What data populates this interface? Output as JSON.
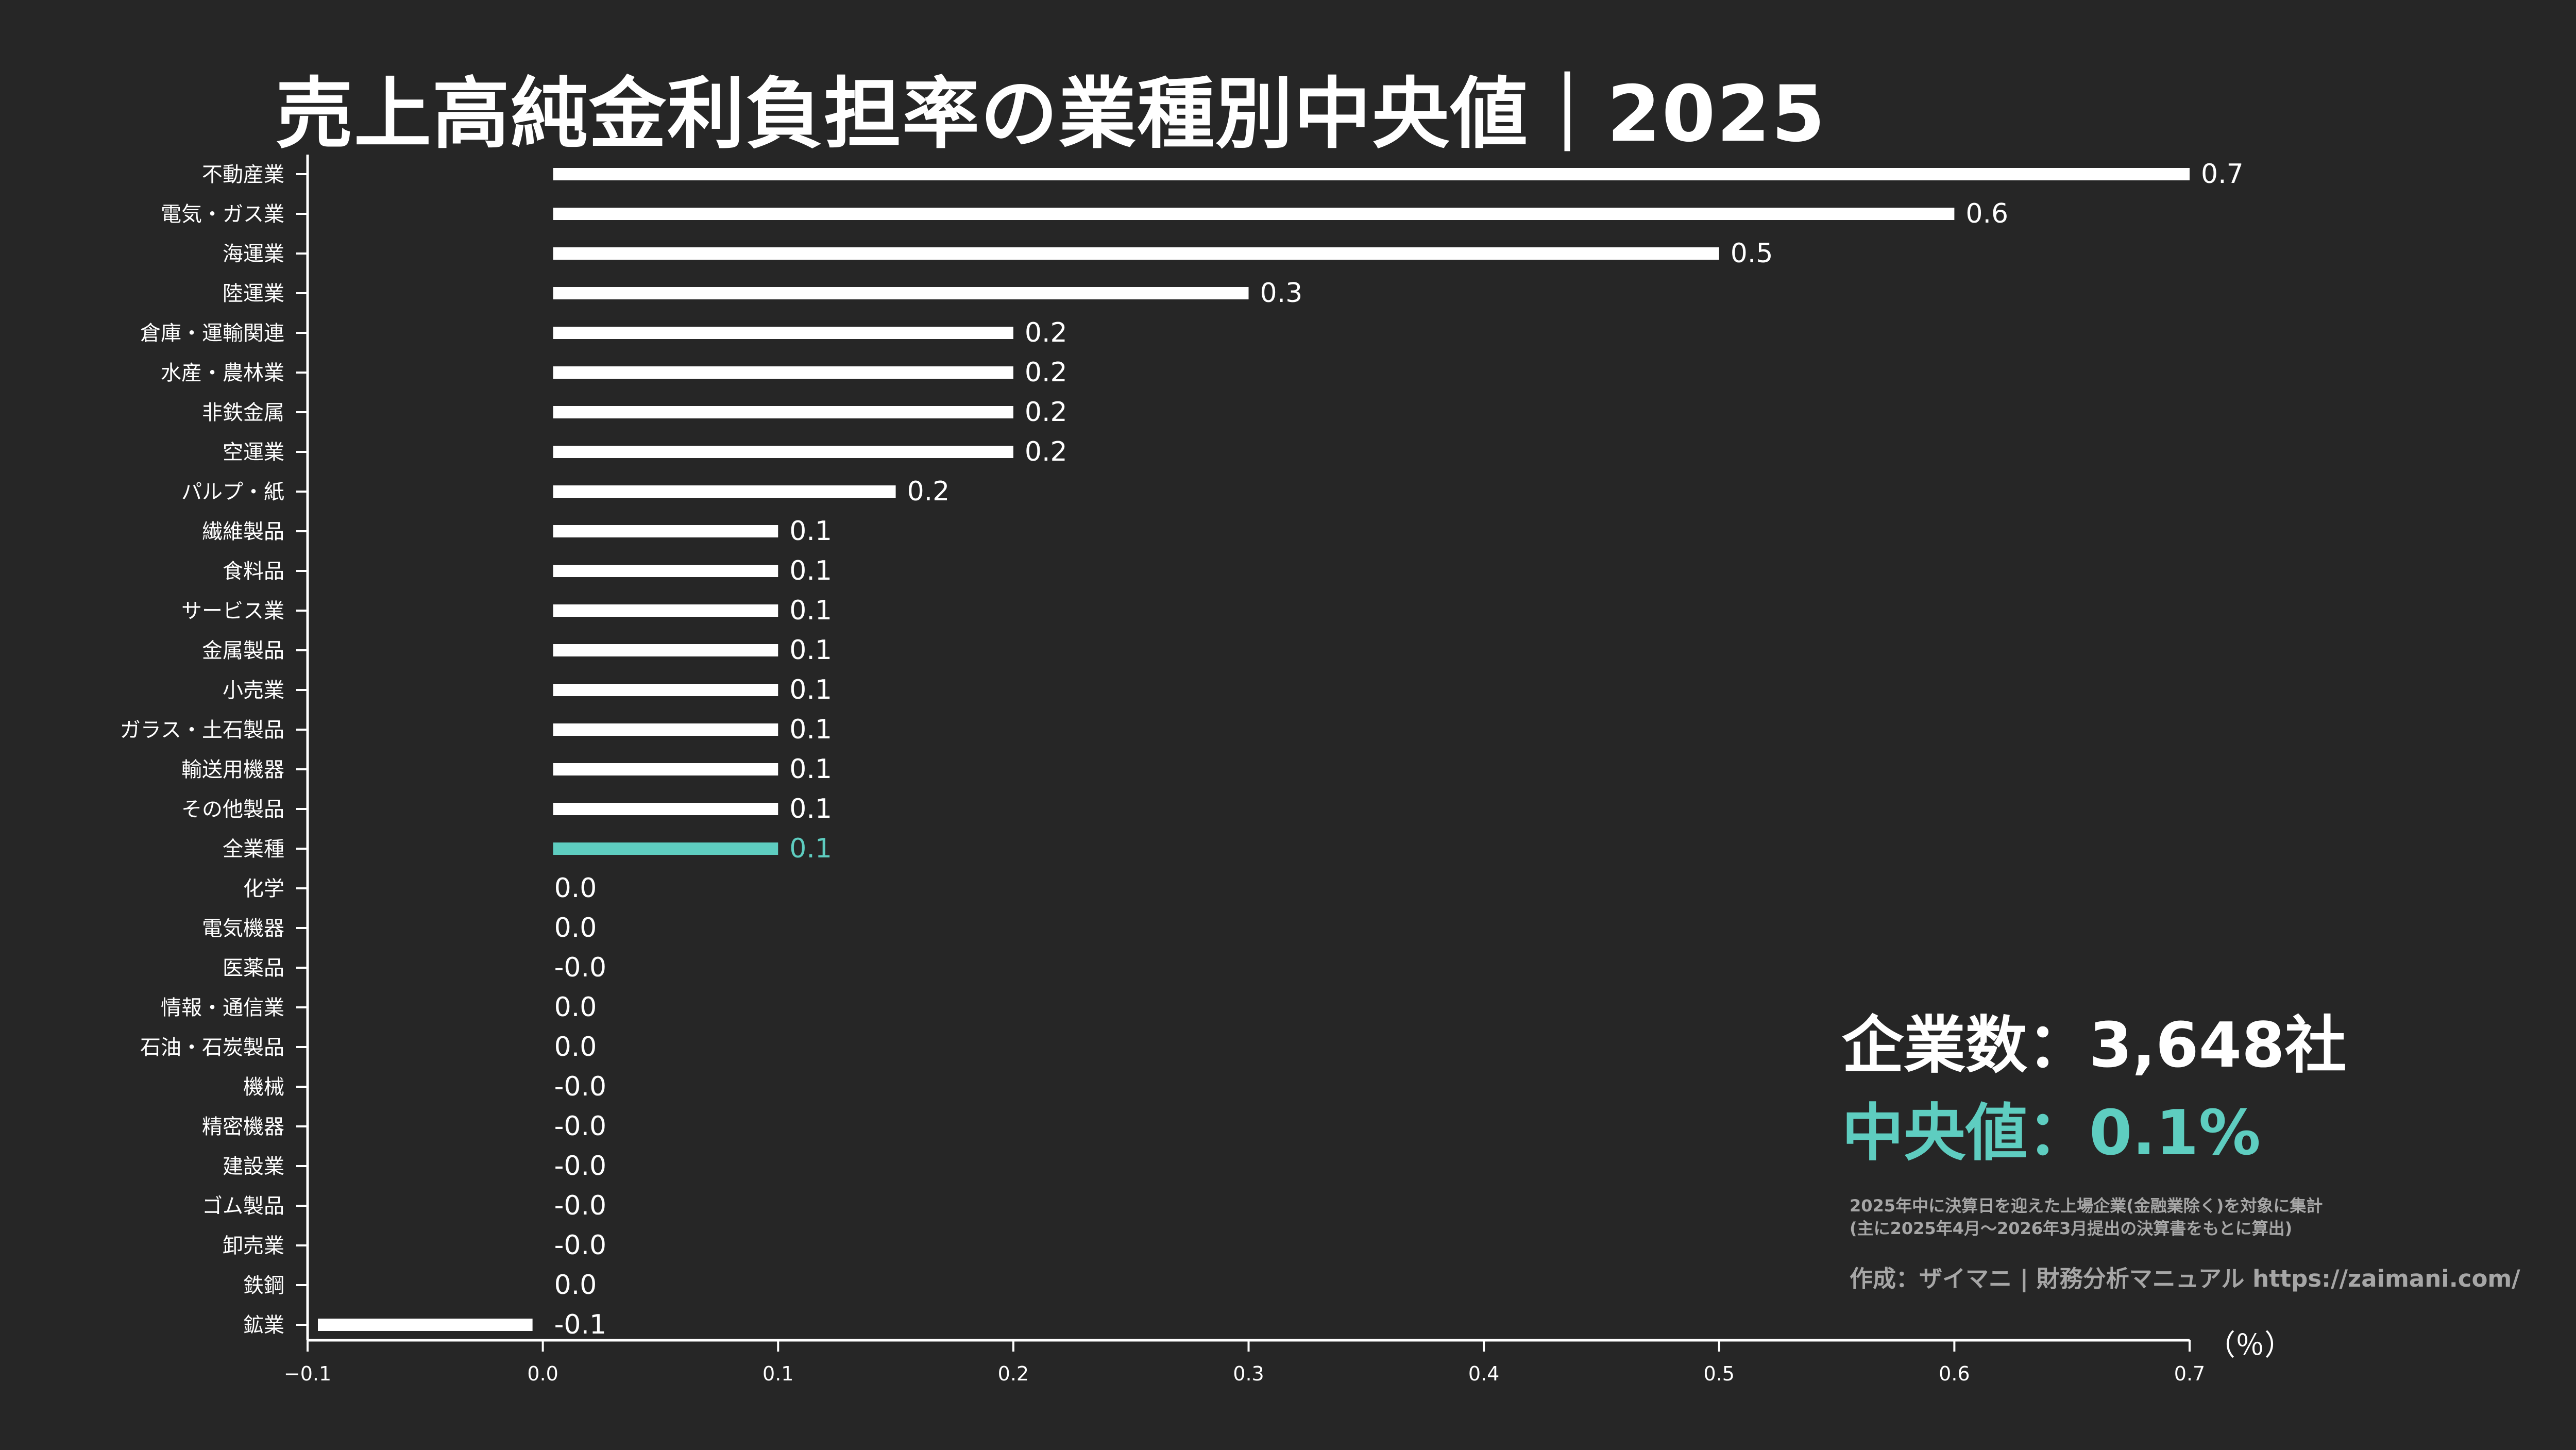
{
  "title": "売上高純金利負担率の業種別中央値｜2025",
  "stats": {
    "companies": "企業数：3,648社",
    "median": "中央値：0.1%"
  },
  "notes": {
    "line1": "2025年中に決算日を迎えた上場企業(金融業除く)を対象に集計",
    "line2": "(主に2025年4月〜2026年3月提出の決算書をもとに算出)"
  },
  "credit": "作成：ザイマニ | 財務分析マニュアル https://zaimani.com/",
  "unit": "（％）",
  "colors": {
    "background": "#262626",
    "bar": "#ffffff",
    "highlight": "#5ecdc0",
    "axis": "#ffffff",
    "note_text": "#a6a6a6"
  },
  "chart_data": {
    "type": "bar",
    "orientation": "horizontal",
    "highlight_category": "全業種",
    "xlim": [
      -0.1,
      0.7
    ],
    "xticks": [
      "-0.1",
      "0.0",
      "0.1",
      "0.2",
      "0.3",
      "0.4",
      "0.5",
      "0.6",
      "0.7"
    ],
    "categories": [
      "不動産業",
      "電気・ガス業",
      "海運業",
      "陸運業",
      "倉庫・運輸関連",
      "水産・農林業",
      "非鉄金属",
      "空運業",
      "パルプ・紙",
      "繊維製品",
      "食料品",
      "サービス業",
      "金属製品",
      "小売業",
      "ガラス・土石製品",
      "輸送用機器",
      "その他製品",
      "全業種",
      "化学",
      "電気機器",
      "医薬品",
      "情報・通信業",
      "石油・石炭製品",
      "機械",
      "精密機器",
      "建設業",
      "ゴム製品",
      "卸売業",
      "鉄鋼",
      "鉱業"
    ],
    "values": [
      0.7,
      0.6,
      0.5,
      0.3,
      0.2,
      0.2,
      0.2,
      0.2,
      0.15,
      0.1,
      0.1,
      0.1,
      0.1,
      0.1,
      0.1,
      0.1,
      0.1,
      0.1,
      0.0,
      0.0,
      -0.0,
      0.0,
      0.0,
      -0.0,
      -0.0,
      -0.0,
      -0.0,
      -0.0,
      0.0,
      -0.1
    ],
    "labels": [
      "0.7",
      "0.6",
      "0.5",
      "0.3",
      "0.2",
      "0.2",
      "0.2",
      "0.2",
      "0.2",
      "0.1",
      "0.1",
      "0.1",
      "0.1",
      "0.1",
      "0.1",
      "0.1",
      "0.1",
      "0.1",
      "0.0",
      "0.0",
      "-0.0",
      "0.0",
      "0.0",
      "-0.0",
      "-0.0",
      "-0.0",
      "-0.0",
      "-0.0",
      "0.0",
      "-0.1"
    ]
  }
}
